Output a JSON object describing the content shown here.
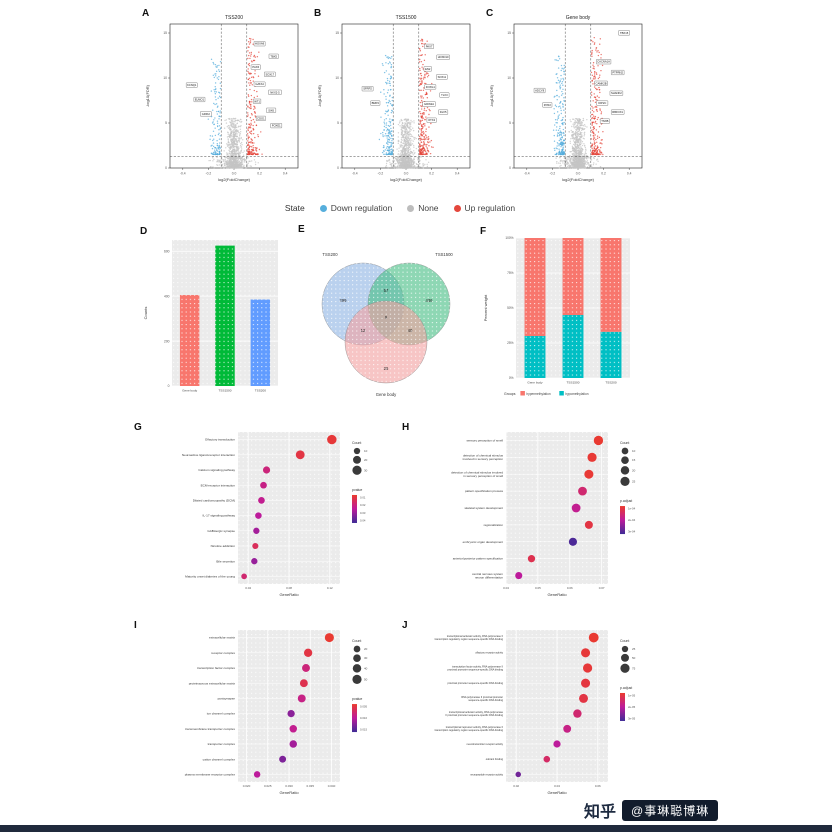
{
  "page": {
    "background": "#ffffff"
  },
  "panels": {
    "A": "A",
    "B": "B",
    "C": "C",
    "D": "D",
    "E": "E",
    "F": "F",
    "G": "G",
    "H": "H",
    "I": "I",
    "J": "J"
  },
  "legend_state": {
    "title": "State",
    "items": [
      {
        "label": "Down regulation",
        "color": "#56AEDC"
      },
      {
        "label": "None",
        "color": "#BDBDBD"
      },
      {
        "label": "Up regulation",
        "color": "#E4473C"
      }
    ]
  },
  "watermark": {
    "brand": "知乎",
    "handle": "@事琳聪博琳"
  },
  "chart_data": [
    {
      "id": "A",
      "type": "scatter",
      "subtype": "volcano",
      "title": "TSS200",
      "xlabel": "log2(FoldChange)",
      "ylabel": "-log10(FDR)",
      "xlim": [
        -0.5,
        0.5
      ],
      "ylim": [
        0,
        16
      ],
      "xticks": [
        -0.4,
        -0.2,
        0,
        0.2,
        0.4
      ],
      "yticks": [
        0,
        5,
        10,
        15
      ],
      "thresholds": {
        "x": [
          -0.1,
          0.1
        ],
        "y": 1.3
      },
      "point_colors": {
        "down": "#56AEDC",
        "none": "#C4C4C4",
        "up": "#E4473C"
      },
      "cloud": {
        "n": 1400,
        "up_fraction": 0.17,
        "down_fraction": 0.1,
        "seed": 11
      },
      "labeled_genes": [
        {
          "name": "KCNQ1",
          "x": -0.33,
          "y": 9.2
        },
        {
          "name": "ELMO1",
          "x": -0.27,
          "y": 7.6
        },
        {
          "name": "GRIK2",
          "x": -0.22,
          "y": 6.0
        },
        {
          "name": "HOXA9",
          "x": 0.2,
          "y": 13.8
        },
        {
          "name": "TBX5",
          "x": 0.31,
          "y": 12.4
        },
        {
          "name": "PAX6",
          "x": 0.17,
          "y": 11.2
        },
        {
          "name": "SOX17",
          "x": 0.28,
          "y": 10.4
        },
        {
          "name": "GATA4",
          "x": 0.2,
          "y": 9.3
        },
        {
          "name": "NKX2-5",
          "x": 0.32,
          "y": 8.4
        },
        {
          "name": "WT1",
          "x": 0.18,
          "y": 7.4
        },
        {
          "name": "SIX6",
          "x": 0.29,
          "y": 6.4
        },
        {
          "name": "CDO1",
          "x": 0.21,
          "y": 5.5
        },
        {
          "name": "FOXE1",
          "x": 0.33,
          "y": 4.7
        }
      ]
    },
    {
      "id": "B",
      "type": "scatter",
      "subtype": "volcano",
      "title": "TSS1500",
      "xlabel": "log2(FoldChange)",
      "ylabel": "-log10(FDR)",
      "xlim": [
        -0.5,
        0.5
      ],
      "ylim": [
        0,
        16
      ],
      "xticks": [
        -0.4,
        -0.2,
        0,
        0.2,
        0.4
      ],
      "yticks": [
        0,
        5,
        10,
        15
      ],
      "thresholds": {
        "x": [
          -0.1,
          0.1
        ],
        "y": 1.3
      },
      "point_colors": {
        "down": "#56AEDC",
        "none": "#C4C4C4",
        "up": "#E4473C"
      },
      "cloud": {
        "n": 1500,
        "up_fraction": 0.18,
        "down_fraction": 0.13,
        "seed": 22
      },
      "labeled_genes": [
        {
          "name": "SFRP2",
          "x": -0.3,
          "y": 8.8
        },
        {
          "name": "BMP4",
          "x": -0.24,
          "y": 7.2
        },
        {
          "name": "PAX7",
          "x": 0.18,
          "y": 13.5
        },
        {
          "name": "HOXD10",
          "x": 0.29,
          "y": 12.3
        },
        {
          "name": "EN2",
          "x": 0.17,
          "y": 11.0
        },
        {
          "name": "SOX11",
          "x": 0.28,
          "y": 10.1
        },
        {
          "name": "FOXG1",
          "x": 0.19,
          "y": 9.0
        },
        {
          "name": "TLX3",
          "x": 0.3,
          "y": 8.1
        },
        {
          "name": "GRIN2A",
          "x": 0.18,
          "y": 7.1
        },
        {
          "name": "DLX5",
          "x": 0.29,
          "y": 6.2
        },
        {
          "name": "OTX2",
          "x": 0.2,
          "y": 5.3
        }
      ]
    },
    {
      "id": "C",
      "type": "scatter",
      "subtype": "volcano",
      "title": "Gene body",
      "xlabel": "log2(FoldChange)",
      "ylabel": "-log10(FDR)",
      "xlim": [
        -0.5,
        0.5
      ],
      "ylim": [
        0,
        16
      ],
      "xticks": [
        -0.4,
        -0.2,
        0,
        0.2,
        0.4
      ],
      "yticks": [
        0,
        5,
        10,
        15
      ],
      "thresholds": {
        "x": [
          -0.1,
          0.1
        ],
        "y": 1.3
      },
      "point_colors": {
        "down": "#56AEDC",
        "none": "#C4C4C4",
        "up": "#E4473C"
      },
      "cloud": {
        "n": 1500,
        "up_fraction": 0.16,
        "down_fraction": 0.14,
        "seed": 33
      },
      "labeled_genes": [
        {
          "name": "TBX15",
          "x": 0.36,
          "y": 15.0
        },
        {
          "name": "ADCY8",
          "x": -0.3,
          "y": 8.6
        },
        {
          "name": "RYR2",
          "x": -0.24,
          "y": 7.0
        },
        {
          "name": "CACNA1A",
          "x": 0.2,
          "y": 11.8
        },
        {
          "name": "PTPRN2",
          "x": 0.31,
          "y": 10.6
        },
        {
          "name": "CAMK2B",
          "x": 0.18,
          "y": 9.4
        },
        {
          "name": "SHANK2",
          "x": 0.3,
          "y": 8.3
        },
        {
          "name": "DIP2C",
          "x": 0.19,
          "y": 7.2
        },
        {
          "name": "RBFOX1",
          "x": 0.31,
          "y": 6.2
        },
        {
          "name": "TNXB",
          "x": 0.21,
          "y": 5.2
        }
      ]
    },
    {
      "id": "D",
      "type": "bar",
      "ylabel": "Counts",
      "categories": [
        "Gene body",
        "TSS1500",
        "TSS200"
      ],
      "values": [
        405,
        625,
        385
      ],
      "colors": [
        "#F8766D",
        "#00BA38",
        "#619CFF"
      ],
      "ylim": [
        0,
        650
      ],
      "yticks": [
        0,
        200,
        400,
        600
      ]
    },
    {
      "id": "E",
      "type": "venn",
      "sets": [
        {
          "label": "TSS200",
          "color": "#8FB4E3"
        },
        {
          "label": "TSS1500",
          "color": "#49BE86"
        },
        {
          "label": "Gene body",
          "color": "#F2A2A2"
        }
      ],
      "counts": {
        "tss200_only": 299,
        "tss1500_only": 436,
        "gene_body_only": 26,
        "overlap_tss200_tss1500": 57,
        "overlap_tss200_gene_body": 12,
        "overlap_tss1500_gene_body": 40,
        "overlap_all": 9
      }
    },
    {
      "id": "F",
      "type": "bar",
      "subtype": "stacked",
      "ylabel": "Percent weight",
      "legend_title": "Groups",
      "categories": [
        "Gene body",
        "TSS1500",
        "TSS200"
      ],
      "series": [
        {
          "name": "hypermethylation",
          "color": "#F8766D",
          "values": [
            70,
            55,
            67
          ]
        },
        {
          "name": "hypomethylation",
          "color": "#00BFC4",
          "values": [
            30,
            45,
            33
          ]
        }
      ],
      "yticks": [
        {
          "v": 0,
          "label": "0%"
        },
        {
          "v": 25,
          "label": "25%"
        },
        {
          "v": 50,
          "label": "50%"
        },
        {
          "v": 75,
          "label": "75%"
        },
        {
          "v": 100,
          "label": "100%"
        }
      ]
    },
    {
      "id": "G",
      "type": "scatter",
      "subtype": "dotplot",
      "xlabel": "GeneRatio",
      "categories": [
        "Olfactory transduction",
        "Neuroactive ligand-receptor interaction",
        "Calcium signaling pathway",
        "ECM-receptor interaction",
        "Dilated cardiomyopathy (DCM)",
        "IL-17 signaling pathway",
        "GABAergic synapse",
        "Nicotine addiction",
        "Bile secretion",
        "Maturity onset diabetes of the young"
      ],
      "x": [
        0.122,
        0.091,
        0.058,
        0.055,
        0.053,
        0.05,
        0.048,
        0.047,
        0.046,
        0.036
      ],
      "count": [
        32,
        27,
        15,
        12,
        12,
        11,
        10,
        9,
        10,
        7
      ],
      "p": [
        0.05,
        0.1,
        0.35,
        0.4,
        0.45,
        0.5,
        0.6,
        0.2,
        0.65,
        0.3
      ],
      "xlim": [
        0.03,
        0.13
      ],
      "xticks": [
        0.04,
        0.08,
        0.12
      ],
      "xtick_labels": [
        "0.04",
        "0.08",
        "0.12"
      ],
      "legend_count": {
        "title": "Count",
        "values": [
          10,
          20,
          30
        ]
      },
      "legend_color": {
        "title": "pvalue",
        "labels": [
          "0.01",
          "0.02",
          "0.03",
          "0.04"
        ]
      }
    },
    {
      "id": "H",
      "type": "scatter",
      "subtype": "dotplot",
      "xlabel": "GeneRatio",
      "categories": [
        "sensory perception of smell",
        "detection of chemical stimulus involved in sensory perception",
        "detection of chemical stimulus involved in sensory perception of smell",
        "pattern specification process",
        "skeletal system development",
        "regionalization",
        "embryonic organ development",
        "anterior/posterior pattern specification",
        "central nervous system neuron differentiation"
      ],
      "x": [
        0.069,
        0.067,
        0.066,
        0.064,
        0.062,
        0.066,
        0.061,
        0.048,
        0.044
      ],
      "count": [
        26,
        25,
        24,
        22,
        22,
        17,
        18,
        13,
        12
      ],
      "p": [
        0.02,
        0.03,
        0.03,
        0.3,
        0.45,
        0.1,
        0.95,
        0.15,
        0.5
      ],
      "xlim": [
        0.04,
        0.072
      ],
      "xticks": [
        0.04,
        0.05,
        0.06,
        0.07
      ],
      "xtick_labels": [
        "0.04",
        "0.05",
        "0.06",
        "0.07"
      ],
      "legend_count": {
        "title": "Count",
        "values": [
          10,
          15,
          20,
          25
        ]
      },
      "legend_color": {
        "title": "p.adjust",
        "labels": [
          "1e-04",
          "2e-04",
          "3e-04"
        ]
      }
    },
    {
      "id": "I",
      "type": "scatter",
      "subtype": "dotplot",
      "xlabel": "GeneRatio",
      "categories": [
        "extracellular matrix",
        "receptor complex",
        "transcription factor complex",
        "proteinaceous extracellular matrix",
        "postsynapse",
        "ion channel complex",
        "transmembrane transporter complex",
        "transporter complex",
        "cation channel complex",
        "plasma membrane receptor complex"
      ],
      "x": [
        0.0395,
        0.0345,
        0.034,
        0.0335,
        0.033,
        0.0305,
        0.031,
        0.031,
        0.0285,
        0.0225
      ],
      "count": [
        48,
        38,
        33,
        32,
        33,
        26,
        28,
        28,
        22,
        18
      ],
      "p": [
        0.02,
        0.1,
        0.35,
        0.15,
        0.4,
        0.7,
        0.45,
        0.6,
        0.75,
        0.5
      ],
      "xlim": [
        0.018,
        0.042
      ],
      "xticks": [
        0.02,
        0.025,
        0.03,
        0.035,
        0.04
      ],
      "xtick_labels": [
        "0.020",
        "0.025",
        "0.030",
        "0.035",
        "0.040"
      ],
      "legend_count": {
        "title": "Count",
        "values": [
          20,
          30,
          40,
          50
        ]
      },
      "legend_color": {
        "title": "pvalue",
        "labels": [
          "0.005",
          "0.010",
          "0.015"
        ]
      }
    },
    {
      "id": "J",
      "type": "scatter",
      "subtype": "dotplot",
      "xlabel": "GeneRatio",
      "categories": [
        "transcriptional activator activity, RNA polymerase II transcription regulatory region sequence-specific DNA binding",
        "olfactory receptor activity",
        "transcription factor activity, RNA polymerase II proximal promoter sequence-specific DNA binding",
        "proximal promoter sequence-specific DNA binding",
        "RNA polymerase II proximal promoter sequence-specific DNA binding",
        "transcriptional activator activity, RNA polymerase II proximal promoter sequence-specific DNA binding",
        "transcriptional repressor activity, RNA polymerase II transcription regulatory region sequence-specific DNA binding",
        "neurotransmitter receptor activity",
        "odorant binding",
        "neuropeptide receptor activity"
      ],
      "x": [
        0.058,
        0.054,
        0.055,
        0.054,
        0.053,
        0.05,
        0.045,
        0.04,
        0.035,
        0.021
      ],
      "count": [
        88,
        72,
        76,
        72,
        70,
        58,
        48,
        38,
        28,
        16
      ],
      "p": [
        0.02,
        0.05,
        0.05,
        0.08,
        0.1,
        0.3,
        0.4,
        0.5,
        0.25,
        0.8
      ],
      "xlim": [
        0.015,
        0.065
      ],
      "xticks": [
        0.02,
        0.04,
        0.06
      ],
      "xtick_labels": [
        "0.02",
        "0.04",
        "0.06"
      ],
      "legend_count": {
        "title": "Count",
        "values": [
          25,
          50,
          75
        ]
      },
      "legend_color": {
        "title": "p.adjust",
        "labels": [
          "1e-05",
          "2e-05",
          "3e-05"
        ]
      }
    }
  ]
}
